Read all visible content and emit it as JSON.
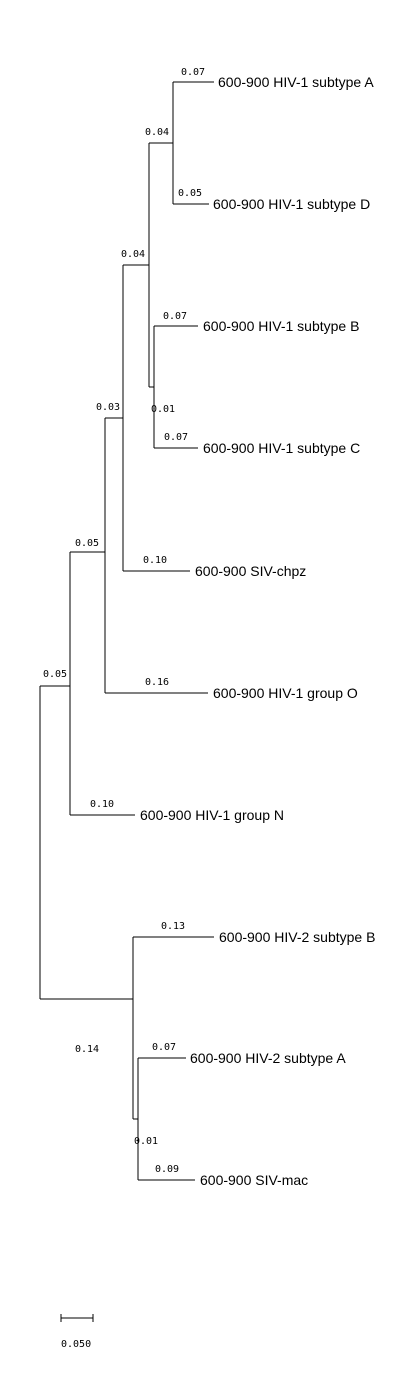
{
  "tree": {
    "taxa": {
      "hiv1_a": "600-900 HIV-1 subtype A",
      "hiv1_d": "600-900 HIV-1 subtype D",
      "hiv1_b": "600-900 HIV-1 subtype B",
      "hiv1_c": "600-900 HIV-1 subtype C",
      "sivcpz": "600-900 SIV-chpz",
      "hiv1_o": "600-900 HIV-1 group O",
      "hiv1_n": "600-900 HIV-1 group N",
      "hiv2_b": "600-900 HIV-2 subtype B",
      "hiv2_a": "600-900 HIV-2 subtype A",
      "sivmac": "600-900 SIV-mac"
    },
    "branch_lengths": {
      "hiv1_a": "0.07",
      "hiv1_d": "0.05",
      "ad_clade": "0.04",
      "abcd_clade": "0.04",
      "hiv1_b": "0.07",
      "bc_clade": "0.01",
      "hiv1_c": "0.07",
      "sivcpz": "0.10",
      "m_cpz_clade": "0.03",
      "hiv1_o": "0.16",
      "mo_clade": "0.05",
      "hiv1_n": "0.10",
      "hiv1_clade": "0.05",
      "hiv2_b": "0.13",
      "hiv2_clade": "0.14",
      "hiv2_a": "0.07",
      "amac_clade": "0.01",
      "sivmac": "0.09"
    },
    "scale_bar": {
      "value": 0.05,
      "label": "0.050"
    }
  }
}
